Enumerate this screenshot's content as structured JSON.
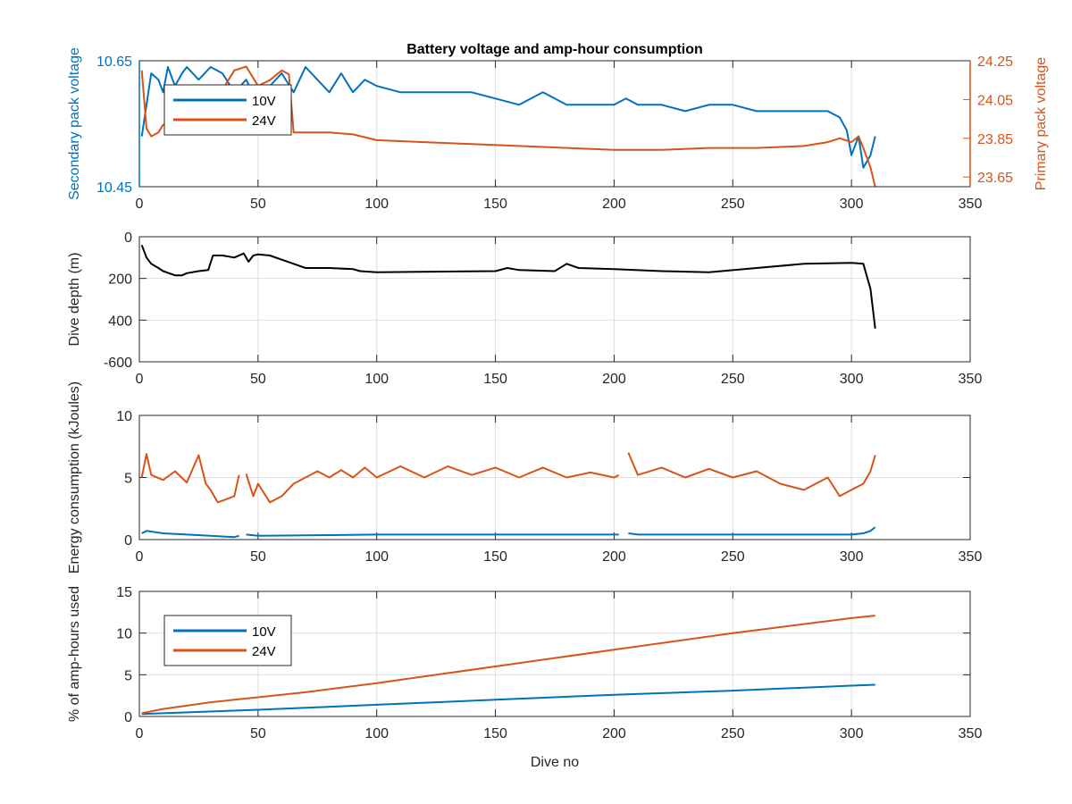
{
  "colors": {
    "blue": "#0072BD",
    "orange": "#D95319",
    "black": "#000000",
    "axis": "#262626",
    "grid": "#dfdfdf"
  },
  "chart_data": [
    {
      "id": "voltage",
      "type": "line",
      "title": "Battery voltage and amp-hour consumption",
      "xlabel": "",
      "ylabel": "Secondary pack voltage",
      "ylabel_right": "Primary pack voltage",
      "xlim": [
        0,
        350
      ],
      "ylim": [
        10.45,
        10.65
      ],
      "ylim_right": [
        23.6,
        24.25
      ],
      "xticks": [
        "0",
        "50",
        "100",
        "150",
        "200",
        "250",
        "300",
        "350"
      ],
      "yticks": [
        "10.45",
        "10.65"
      ],
      "yticks_right": [
        "23.65",
        "23.85",
        "24.05",
        "24.25"
      ],
      "grid": true,
      "legend": {
        "placement": "top-left",
        "entries": [
          "10V",
          "24V"
        ]
      },
      "series": [
        {
          "name": "10V",
          "axis": "left",
          "color": "#0072BD",
          "x": [
            1,
            3,
            5,
            8,
            10,
            12,
            15,
            18,
            20,
            25,
            30,
            35,
            40,
            45,
            50,
            55,
            60,
            65,
            70,
            75,
            80,
            85,
            90,
            95,
            100,
            110,
            120,
            130,
            140,
            150,
            160,
            170,
            180,
            190,
            200,
            205,
            210,
            220,
            230,
            240,
            250,
            260,
            270,
            280,
            290,
            295,
            298,
            300,
            303,
            305,
            308,
            310
          ],
          "y": [
            10.53,
            10.58,
            10.63,
            10.62,
            10.6,
            10.64,
            10.61,
            10.63,
            10.64,
            10.62,
            10.64,
            10.63,
            10.6,
            10.62,
            10.58,
            10.61,
            10.63,
            10.6,
            10.64,
            10.62,
            10.6,
            10.63,
            10.6,
            10.62,
            10.61,
            10.6,
            10.6,
            10.6,
            10.6,
            10.59,
            10.58,
            10.6,
            10.58,
            10.58,
            10.58,
            10.59,
            10.58,
            10.58,
            10.57,
            10.58,
            10.58,
            10.57,
            10.57,
            10.57,
            10.57,
            10.56,
            10.54,
            10.5,
            10.53,
            10.48,
            10.5,
            10.53
          ]
        },
        {
          "name": "24V",
          "axis": "right",
          "color": "#D95319",
          "x": [
            1,
            3,
            5,
            8,
            10,
            15,
            20,
            25,
            30,
            35,
            40,
            45,
            50,
            55,
            60,
            63,
            65,
            70,
            80,
            90,
            100,
            120,
            140,
            160,
            180,
            200,
            220,
            240,
            260,
            280,
            290,
            295,
            300,
            303,
            305,
            308,
            310
          ],
          "y": [
            24.2,
            23.9,
            23.86,
            23.88,
            23.92,
            23.92,
            23.93,
            23.93,
            23.94,
            24.1,
            24.2,
            24.22,
            24.12,
            24.15,
            24.2,
            24.18,
            23.88,
            23.88,
            23.88,
            23.87,
            23.84,
            23.83,
            23.82,
            23.81,
            23.8,
            23.79,
            23.79,
            23.8,
            23.8,
            23.81,
            23.83,
            23.85,
            23.83,
            23.86,
            23.8,
            23.7,
            23.6
          ]
        }
      ]
    },
    {
      "id": "depth",
      "type": "line",
      "title": "",
      "xlabel": "",
      "ylabel": "Dive depth (m)",
      "xlim": [
        0,
        350
      ],
      "ylim": [
        -600,
        0
      ],
      "yreverse": true,
      "xticks": [
        "0",
        "50",
        "100",
        "150",
        "200",
        "250",
        "300",
        "350"
      ],
      "yticks": [
        "0",
        "200",
        "400",
        "-600"
      ],
      "grid": true,
      "series": [
        {
          "color": "#000000",
          "x": [
            1,
            3,
            5,
            8,
            10,
            15,
            18,
            20,
            25,
            29,
            31,
            35,
            40,
            44,
            46,
            48,
            50,
            55,
            60,
            65,
            70,
            80,
            90,
            93,
            100,
            150,
            155,
            160,
            175,
            180,
            185,
            200,
            220,
            240,
            260,
            280,
            300,
            305,
            308,
            310
          ],
          "y": [
            40,
            100,
            130,
            150,
            165,
            185,
            185,
            175,
            165,
            160,
            90,
            90,
            100,
            80,
            120,
            90,
            85,
            90,
            110,
            130,
            150,
            150,
            155,
            165,
            170,
            165,
            150,
            160,
            165,
            130,
            150,
            155,
            165,
            170,
            150,
            130,
            125,
            130,
            250,
            440
          ]
        }
      ]
    },
    {
      "id": "energy",
      "type": "line",
      "title": "",
      "xlabel": "",
      "ylabel": "Energy consumption (kJoules)",
      "xlim": [
        0,
        350
      ],
      "ylim": [
        0,
        10
      ],
      "xticks": [
        "0",
        "50",
        "100",
        "150",
        "200",
        "250",
        "300",
        "350"
      ],
      "yticks": [
        "0",
        "5",
        "10"
      ],
      "grid": true,
      "series": [
        {
          "name": "10V",
          "color": "#0072BD",
          "x": [
            1,
            3,
            10,
            20,
            30,
            40,
            42,
            null,
            45,
            50,
            100,
            150,
            200,
            202,
            null,
            206,
            210,
            250,
            300,
            305,
            308,
            310
          ],
          "y": [
            0.5,
            0.7,
            0.5,
            0.4,
            0.3,
            0.2,
            0.3,
            null,
            0.4,
            0.3,
            0.4,
            0.4,
            0.4,
            0.4,
            null,
            0.5,
            0.4,
            0.4,
            0.4,
            0.5,
            0.7,
            1.0
          ]
        },
        {
          "name": "24V",
          "color": "#D95319",
          "x": [
            1,
            3,
            5,
            10,
            15,
            20,
            25,
            28,
            30,
            33,
            36,
            40,
            42,
            null,
            45,
            48,
            50,
            55,
            60,
            65,
            70,
            75,
            80,
            85,
            90,
            95,
            100,
            110,
            120,
            130,
            140,
            150,
            160,
            170,
            180,
            190,
            200,
            202,
            null,
            206,
            210,
            220,
            230,
            240,
            250,
            260,
            270,
            280,
            290,
            295,
            300,
            305,
            308,
            310
          ],
          "y": [
            5.0,
            6.9,
            5.2,
            4.8,
            5.5,
            4.6,
            6.8,
            4.5,
            4.0,
            3.0,
            3.2,
            3.5,
            5.2,
            null,
            5.3,
            3.5,
            4.5,
            3.0,
            3.5,
            4.5,
            5.0,
            5.5,
            5.0,
            5.6,
            5.0,
            5.8,
            5.0,
            5.9,
            5.0,
            5.9,
            5.2,
            5.8,
            5.0,
            5.8,
            5.0,
            5.4,
            5.0,
            5.2,
            null,
            7.0,
            5.2,
            5.8,
            5.0,
            5.7,
            5.0,
            5.5,
            4.5,
            4.0,
            5.0,
            3.5,
            4.0,
            4.5,
            5.5,
            6.8
          ]
        }
      ]
    },
    {
      "id": "amphours",
      "type": "line",
      "title": "",
      "xlabel": "Dive no",
      "ylabel": "% of amp-hours used",
      "xlim": [
        0,
        350
      ],
      "ylim": [
        0,
        15
      ],
      "xticks": [
        "0",
        "50",
        "100",
        "150",
        "200",
        "250",
        "300",
        "350"
      ],
      "yticks": [
        "0",
        "5",
        "10",
        "15"
      ],
      "grid": true,
      "legend": {
        "placement": "top-left",
        "entries": [
          "10V",
          "24V"
        ]
      },
      "series": [
        {
          "name": "10V",
          "color": "#0072BD",
          "x": [
            1,
            50,
            100,
            150,
            200,
            250,
            300,
            310
          ],
          "y": [
            0.3,
            0.8,
            1.4,
            2.0,
            2.6,
            3.1,
            3.7,
            3.8
          ]
        },
        {
          "name": "24V",
          "color": "#D95319",
          "x": [
            1,
            10,
            30,
            50,
            70,
            100,
            150,
            200,
            250,
            300,
            310
          ],
          "y": [
            0.4,
            0.9,
            1.7,
            2.3,
            2.9,
            4.0,
            6.0,
            8.0,
            10.0,
            11.8,
            12.1
          ]
        }
      ]
    }
  ]
}
